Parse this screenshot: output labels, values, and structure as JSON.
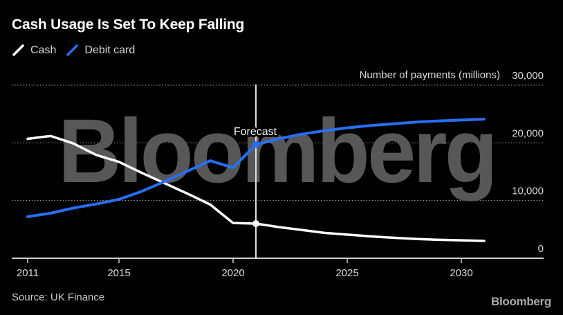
{
  "header": {
    "title": "Cash Usage Is Set To Keep Falling",
    "legend": [
      {
        "label": "Cash",
        "color": "#ffffff"
      },
      {
        "label": "Debit card",
        "color": "#286ef5"
      }
    ]
  },
  "chart_data": {
    "type": "line",
    "title": "Cash Usage Is Set To Keep Falling",
    "ylabel": "Number of payments (millions)",
    "xlabel": "",
    "x": [
      2011,
      2012,
      2013,
      2014,
      2015,
      2016,
      2017,
      2018,
      2019,
      2020,
      2021,
      2022,
      2023,
      2024,
      2025,
      2026,
      2027,
      2028,
      2029,
      2030,
      2031
    ],
    "series": [
      {
        "name": "Cash",
        "color": "#ffffff",
        "values": [
          20700,
          21200,
          19900,
          17900,
          16700,
          14800,
          13000,
          11200,
          9300,
          6100,
          6000,
          5400,
          4900,
          4400,
          4100,
          3800,
          3550,
          3350,
          3200,
          3100,
          3000
        ]
      },
      {
        "name": "Debit card",
        "color": "#286ef5",
        "values": [
          7200,
          7800,
          8700,
          9400,
          10200,
          11600,
          13300,
          15100,
          16900,
          15700,
          19700,
          20700,
          21500,
          22100,
          22600,
          23000,
          23300,
          23600,
          23800,
          23950,
          24100
        ]
      }
    ],
    "forecast_start_year": 2021,
    "forecast_label": "Forecast",
    "x_ticks": [
      2011,
      2015,
      2020,
      2025,
      2030
    ],
    "y_ticks": [
      {
        "value": 30000,
        "label": "30,000"
      },
      {
        "value": 20000,
        "label": "20,000"
      },
      {
        "value": 10000,
        "label": "10,000"
      },
      {
        "value": 0,
        "label": "0"
      }
    ],
    "xlim": [
      2011,
      2031
    ],
    "ylim": [
      0,
      30000
    ],
    "grid": "horizontal-dotted",
    "legend_position": "top-left",
    "watermark": "Bloomberg",
    "colors": {
      "background": "#000000",
      "grid": "#ababab",
      "axis": "#d0d0d0",
      "tick_text": "#d9d9d9",
      "forecast_line": "#e0e0e0",
      "watermark": "#575757"
    }
  },
  "footer": {
    "source": "Source: UK Finance",
    "brand": "Bloomberg"
  }
}
